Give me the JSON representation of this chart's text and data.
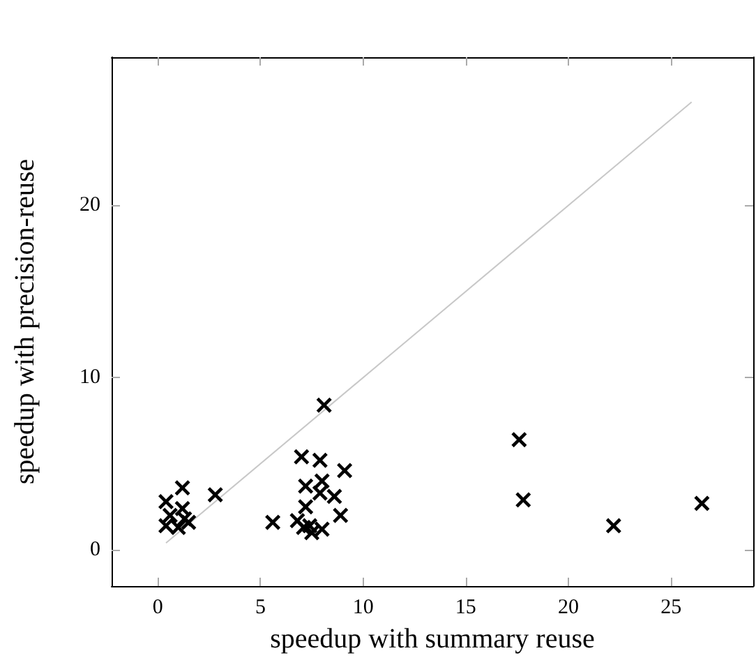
{
  "chart_data": {
    "type": "scatter",
    "xlabel": "speedup with summary reuse",
    "ylabel": "speedup with precision-reuse",
    "xlim": [
      -2.25,
      29
    ],
    "ylim": [
      -2.1,
      28.6
    ],
    "xticks": [
      0,
      5,
      10,
      15,
      20,
      25
    ],
    "yticks": [
      0,
      10,
      20
    ],
    "grid": false,
    "marker": "cross",
    "series": [
      {
        "type": "line",
        "color": "#c8c8c8",
        "marker": "none",
        "x": [
          0.4,
          26
        ],
        "values": [
          0.4,
          26
        ]
      },
      {
        "color": "#000000",
        "x": [
          17.6,
          17.8,
          22.2,
          26.5,
          0.4,
          1.2,
          0.6,
          1.2,
          0.4,
          1.0,
          1.5,
          1.3,
          2.8,
          8.1,
          7.0,
          7.9,
          9.1,
          8.0,
          7.2,
          7.9,
          8.6,
          7.2,
          5.6,
          6.8,
          8.9,
          7.1,
          7.4,
          8.0,
          7.5
        ],
        "values": [
          6.4,
          2.9,
          1.4,
          2.7,
          2.8,
          3.6,
          2.0,
          2.4,
          1.4,
          1.3,
          1.6,
          1.8,
          3.2,
          8.4,
          5.4,
          5.2,
          4.6,
          4.0,
          3.7,
          3.3,
          3.1,
          2.5,
          1.6,
          1.7,
          2.0,
          1.3,
          1.4,
          1.2,
          1.0
        ]
      }
    ]
  }
}
